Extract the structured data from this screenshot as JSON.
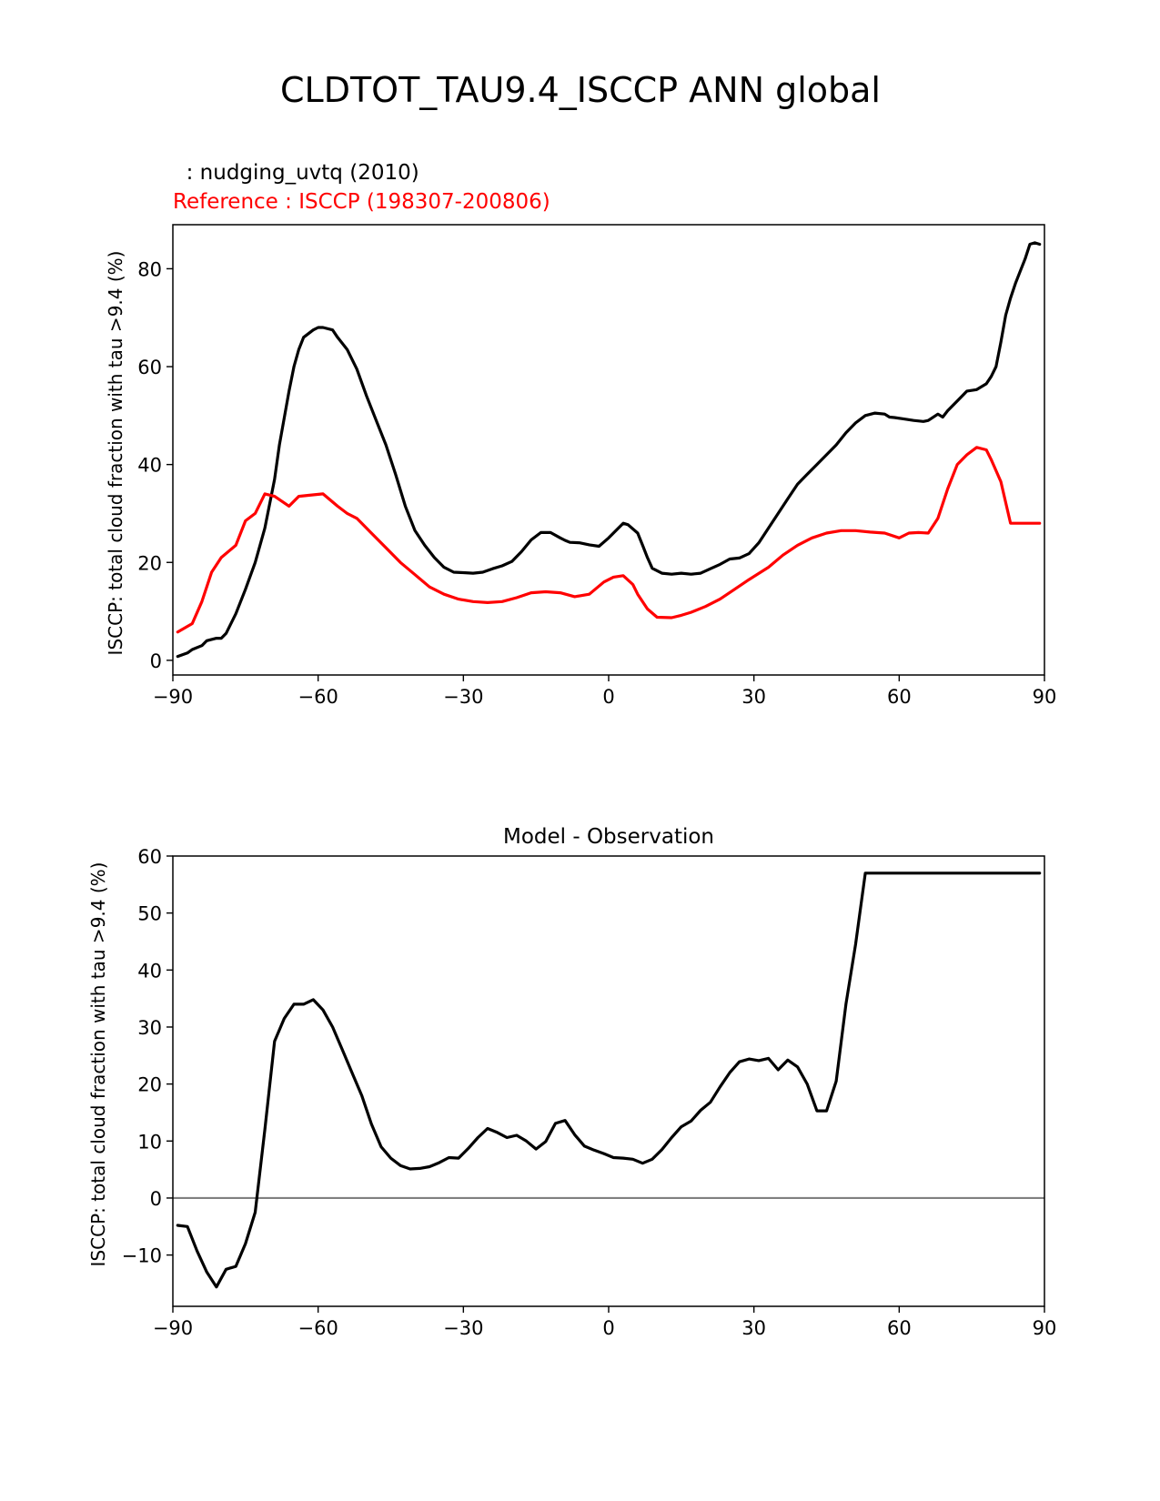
{
  "figure_title": "CLDTOT_TAU9.4_ISCCP ANN global",
  "colors": {
    "model": "#000000",
    "reference": "#ff0000",
    "zero_line": "#808080"
  },
  "chart_data": [
    {
      "type": "line",
      "title_left_model": "  : nudging_uvtq (2010)",
      "title_left_reference": "Reference : ISCCP (198307-200806)",
      "ylabel": "ISCCP: total cloud fraction with tau >9.4 (%)",
      "xlim": [
        -90,
        90
      ],
      "ylim": [
        -3,
        89
      ],
      "xticks": [
        -90,
        -60,
        -30,
        0,
        30,
        60,
        90
      ],
      "yticks": [
        0,
        20,
        40,
        60,
        80
      ],
      "series": [
        {
          "name": "nudging_uvtq (2010)",
          "color": "#000000",
          "x": [
            -89,
            -87,
            -86,
            -84,
            -83,
            -81,
            -80,
            -79,
            -77,
            -75,
            -73,
            -71,
            -69,
            -68,
            -66,
            -65,
            -64,
            -63,
            -61,
            -60,
            -59,
            -57,
            -56,
            -54,
            -52,
            -50,
            -48,
            -46,
            -44,
            -42,
            -40,
            -38,
            -36,
            -34,
            -32,
            -30,
            -28,
            -26,
            -24,
            -22,
            -20,
            -18,
            -16,
            -14,
            -12,
            -10,
            -9,
            -8,
            -6,
            -4,
            -2,
            0,
            2,
            3,
            4,
            6,
            7,
            8,
            9,
            11,
            13,
            15,
            17,
            19,
            21,
            23,
            25,
            27,
            29,
            31,
            33,
            35,
            37,
            39,
            41,
            43,
            45,
            47,
            49,
            51,
            53,
            55,
            57,
            58,
            59,
            61,
            63,
            65,
            66,
            68,
            69,
            70,
            72,
            74,
            76,
            78,
            79,
            80,
            81,
            82,
            83,
            84,
            85,
            86,
            87,
            88,
            89
          ],
          "values": [
            0.8,
            1.5,
            2.2,
            3.0,
            4.0,
            4.5,
            4.5,
            5.5,
            9.5,
            14.5,
            20.0,
            27.0,
            37.0,
            44.0,
            55.0,
            60.0,
            63.5,
            66.0,
            67.5,
            68.0,
            68.0,
            67.5,
            66.0,
            63.5,
            59.5,
            54.0,
            49.0,
            44.0,
            38.0,
            31.5,
            26.5,
            23.5,
            21.0,
            19.0,
            18.0,
            17.9,
            17.8,
            18.0,
            18.7,
            19.3,
            20.2,
            22.2,
            24.6,
            26.1,
            26.1,
            25.0,
            24.5,
            24.1,
            24.0,
            23.6,
            23.3,
            25.0,
            27.0,
            28.0,
            27.7,
            26.0,
            23.5,
            21.0,
            18.8,
            17.8,
            17.6,
            17.8,
            17.6,
            17.8,
            18.7,
            19.6,
            20.7,
            20.9,
            21.8,
            24.0,
            27.0,
            30.0,
            33.0,
            36.0,
            38.0,
            40.0,
            42.0,
            44.0,
            46.5,
            48.5,
            50.0,
            50.5,
            50.3,
            49.7,
            49.6,
            49.3,
            49.0,
            48.8,
            49.0,
            50.3,
            49.7,
            51.0,
            53.0,
            55.0,
            55.3,
            56.5,
            58.0,
            60.0,
            65.0,
            70.5,
            74.0,
            77.0,
            79.5,
            82.0,
            85.0,
            85.3,
            85.0
          ]
        },
        {
          "name": "Reference : ISCCP (198307-200806)",
          "color": "#ff0000",
          "x": [
            -89,
            -86,
            -84,
            -82,
            -80,
            -77,
            -75,
            -73,
            -71,
            -69,
            -66,
            -64,
            -62,
            -59,
            -56,
            -54,
            -52,
            -49,
            -46,
            -43,
            -40,
            -37,
            -34,
            -31,
            -28,
            -25,
            -22,
            -19,
            -16,
            -13,
            -10,
            -7,
            -4,
            -1,
            1,
            3,
            5,
            6,
            8,
            10,
            13,
            15,
            17,
            20,
            23,
            26,
            29,
            33,
            36,
            39,
            42,
            45,
            48,
            51,
            54,
            57,
            60,
            62,
            64,
            66,
            68,
            70,
            72,
            74,
            76,
            78,
            79,
            81,
            83,
            85,
            87,
            89
          ],
          "values": [
            5.8,
            7.5,
            12.0,
            18.0,
            21.0,
            23.5,
            28.5,
            30.0,
            34.0,
            33.5,
            31.5,
            33.5,
            33.7,
            34.0,
            31.5,
            30.0,
            29.0,
            26.0,
            23.0,
            20.0,
            17.5,
            15.0,
            13.5,
            12.5,
            12.0,
            11.8,
            12.0,
            12.8,
            13.8,
            14.0,
            13.8,
            13.0,
            13.5,
            16.0,
            17.0,
            17.3,
            15.5,
            13.5,
            10.5,
            8.8,
            8.7,
            9.2,
            9.8,
            11.0,
            12.5,
            14.5,
            16.5,
            19.0,
            21.5,
            23.5,
            25.0,
            26.0,
            26.5,
            26.5,
            26.2,
            26.0,
            25.0,
            26.0,
            26.1,
            26.0,
            29.0,
            35.0,
            40.0,
            42.0,
            43.5,
            43.0,
            41.0,
            36.5,
            28.0,
            28.0,
            28.0,
            28.0
          ]
        }
      ]
    },
    {
      "type": "line",
      "title": "Model - Observation",
      "ylabel": "ISCCP: total cloud fraction with tau >9.4 (%)",
      "xlim": [
        -90,
        90
      ],
      "ylim": [
        -19,
        60
      ],
      "xticks": [
        -90,
        -60,
        -30,
        0,
        30,
        60,
        90
      ],
      "yticks": [
        -10,
        0,
        10,
        20,
        30,
        40,
        50,
        60
      ],
      "zero_line": 0,
      "series": [
        {
          "name": "Model - Observation",
          "color": "#000000",
          "x": [
            -89,
            -87,
            -85,
            -83,
            -81,
            -79,
            -77,
            -75,
            -73,
            -71,
            -69,
            -67,
            -65,
            -63,
            -61,
            -59,
            -57,
            -55,
            -53,
            -51,
            -49,
            -47,
            -45,
            -43,
            -41,
            -39,
            -37,
            -35,
            -33,
            -31,
            -29,
            -27,
            -25,
            -23,
            -21,
            -19,
            -17,
            -15,
            -13,
            -11,
            -9,
            -7,
            -5,
            -3,
            -1,
            1,
            3,
            5,
            7,
            9,
            11,
            13,
            15,
            17,
            19,
            21,
            23,
            25,
            27,
            29,
            31,
            33,
            35,
            37,
            39,
            41,
            43,
            45,
            47,
            49,
            51,
            53,
            55,
            57,
            59,
            61,
            63,
            65,
            67,
            69,
            71,
            73,
            75,
            77,
            79,
            81,
            83,
            85,
            87,
            89
          ],
          "values": [
            -4.8,
            -5.0,
            -9.3,
            -13.0,
            -15.6,
            -12.5,
            -12.0,
            -8.0,
            -2.5,
            12.0,
            27.5,
            31.5,
            34.0,
            34.0,
            34.8,
            33.0,
            30.0,
            26.0,
            22.0,
            18.0,
            13.0,
            9.0,
            7.0,
            5.7,
            5.1,
            5.2,
            5.5,
            6.2,
            7.1,
            7.0,
            8.7,
            10.6,
            12.2,
            11.5,
            10.6,
            11.0,
            10.0,
            8.6,
            9.9,
            13.1,
            13.6,
            11.1,
            9.1,
            8.4,
            7.8,
            7.1,
            7.0,
            6.8,
            6.1,
            6.8,
            8.5,
            10.6,
            12.5,
            13.5,
            15.4,
            16.8,
            19.5,
            22.0,
            23.9,
            24.4,
            24.1,
            24.5,
            22.5,
            24.2,
            23.0,
            20.0,
            15.3,
            15.3,
            20.5,
            34.0,
            44.5,
            57.0,
            57.0,
            57.0,
            57.0,
            57.0,
            57.0,
            57.0,
            57.0,
            57.0,
            57.0,
            57.0,
            57.0,
            57.0,
            57.0,
            57.0,
            57.0,
            57.0,
            57.0,
            57.0
          ]
        }
      ]
    }
  ]
}
